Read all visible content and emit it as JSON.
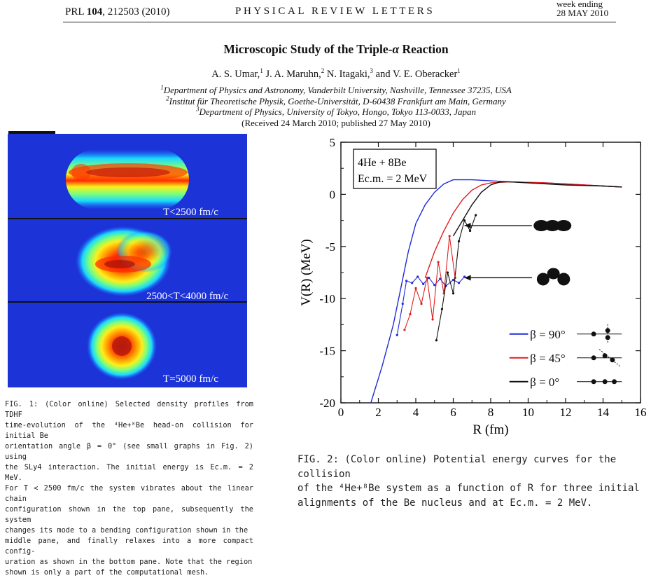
{
  "header": {
    "journal_ref_prefix": "PRL ",
    "journal_ref_vol": "104",
    "journal_ref_rest": ", 212503 (2010)",
    "journal_name": "PHYSICAL REVIEW LETTERS",
    "week_ending": "week ending",
    "date": "28 MAY 2010"
  },
  "paper": {
    "title_prefix": "Microscopic Study of the Triple-",
    "title_symbol": "α",
    "title_suffix": " Reaction",
    "authors": [
      {
        "name": "A. S. Umar,",
        "sup": "1"
      },
      {
        "name": " J. A. Maruhn,",
        "sup": "2"
      },
      {
        "name": " N. Itagaki,",
        "sup": "3"
      },
      {
        "name": " and V. E. Oberacker",
        "sup": "1"
      }
    ],
    "affiliations": [
      {
        "sup": "1",
        "text": "Department of Physics and Astronomy, Vanderbilt University, Nashville, Tennessee 37235, USA"
      },
      {
        "sup": "2",
        "text": "Institut für Theoretische Physik, Goethe-Universität, D-60438 Frankfurt am Main, Germany"
      },
      {
        "sup": "3",
        "text": "Department of Physics, University of Tokyo, Hongo, Tokyo 113-0033, Japan"
      }
    ],
    "received": "(Received 24 March 2010; published 27 May 2010)"
  },
  "fig1": {
    "panels": [
      {
        "label": "T<2500 fm/c"
      },
      {
        "label": "2500<T<4000 fm/c"
      },
      {
        "label": "T=5000 fm/c"
      }
    ],
    "caption_lines": [
      "FIG. 1: (Color online) Selected density profiles from TDHF",
      "time-evolution of the ⁴He+⁸Be head-on collision for initial Be",
      "orientation angle β = 0° (see small graphs in Fig. 2) using",
      "the SLy4 interaction. The initial energy is Ec.m. = 2 MeV.",
      "For T < 2500 fm/c the system vibrates about the linear chain",
      "configuration shown in the top pane, subsequently the system",
      "changes its mode to a bending configuration shown in the",
      "middle pane, and finally relaxes into a more compact config-",
      "uration as shown in the bottom pane. Note that the region",
      "shown is only a part of the computational mesh."
    ]
  },
  "chart_data": {
    "type": "line",
    "xlabel": "R (fm)",
    "ylabel": "V(R) (MeV)",
    "xlim": [
      0,
      16
    ],
    "ylim": [
      -20,
      5
    ],
    "xticks": [
      0,
      2,
      4,
      6,
      8,
      10,
      12,
      14,
      16
    ],
    "yticks": [
      5,
      0,
      -5,
      -10,
      -15,
      -20
    ],
    "inset_line1": "4He + 8Be",
    "inset_line2": "Ec.m. = 2 MeV",
    "legend_position": "bottom-right",
    "series": [
      {
        "name": "β = 90°",
        "color": "#1f2bd6",
        "x": [
          1.6,
          2.2,
          2.8,
          3.2,
          3.6,
          4.0,
          4.5,
          5.0,
          5.5,
          6.0,
          7.0,
          8.0,
          9.0,
          11.0,
          13.0,
          15.0
        ],
        "y": [
          -20.0,
          -16.5,
          -12.5,
          -9.0,
          -5.5,
          -2.8,
          -1.0,
          0.2,
          1.0,
          1.4,
          1.4,
          1.3,
          1.2,
          1.1,
          0.9,
          0.7
        ],
        "tangle_x": [
          3.0,
          3.3,
          3.5,
          3.8,
          4.1,
          4.4,
          4.7,
          5.0,
          5.3,
          5.6,
          6.0,
          6.3,
          6.6
        ],
        "tangle_y": [
          -13.5,
          -10.5,
          -8.3,
          -8.5,
          -7.9,
          -8.6,
          -8.0,
          -8.7,
          -8.1,
          -8.8,
          -8.2,
          -8.5,
          -7.9
        ]
      },
      {
        "name": "β = 45°",
        "color": "#e01e1e",
        "x": [
          4.5,
          5.0,
          5.5,
          6.0,
          6.5,
          7.0,
          7.5,
          8.0,
          9.0,
          11.0,
          13.0,
          15.0
        ],
        "y": [
          -8.0,
          -5.5,
          -3.5,
          -1.8,
          -0.5,
          0.4,
          0.9,
          1.1,
          1.2,
          1.1,
          0.9,
          0.7
        ],
        "tangle_x": [
          3.4,
          3.7,
          4.0,
          4.3,
          4.6,
          4.9,
          5.2,
          5.5,
          5.8,
          6.1
        ],
        "tangle_y": [
          -13.0,
          -11.5,
          -9.0,
          -10.5,
          -8.0,
          -12.0,
          -6.5,
          -9.5,
          -4.0,
          -8.0
        ]
      },
      {
        "name": "β = 0°",
        "color": "#111111",
        "x": [
          6.0,
          6.5,
          7.0,
          7.5,
          8.0,
          8.5,
          9.0,
          10.0,
          12.0,
          14.0,
          15.0
        ],
        "y": [
          -4.0,
          -2.5,
          -1.0,
          0.2,
          0.9,
          1.2,
          1.2,
          1.1,
          0.9,
          0.8,
          0.7
        ],
        "tangle_x": [
          5.1,
          5.4,
          5.7,
          6.0,
          6.3,
          6.6,
          6.9,
          7.2
        ],
        "tangle_y": [
          -14.0,
          -11.0,
          -7.5,
          -9.5,
          -4.5,
          -2.5,
          -3.5,
          -2.0
        ]
      }
    ]
  },
  "fig2": {
    "caption_lines": [
      "FIG. 2: (Color online) Potential energy curves for the collision",
      "of the ⁴He+⁸Be system as a function of R for three initial",
      "alignments of the Be nucleus and at Ec.m. = 2 MeV."
    ]
  }
}
